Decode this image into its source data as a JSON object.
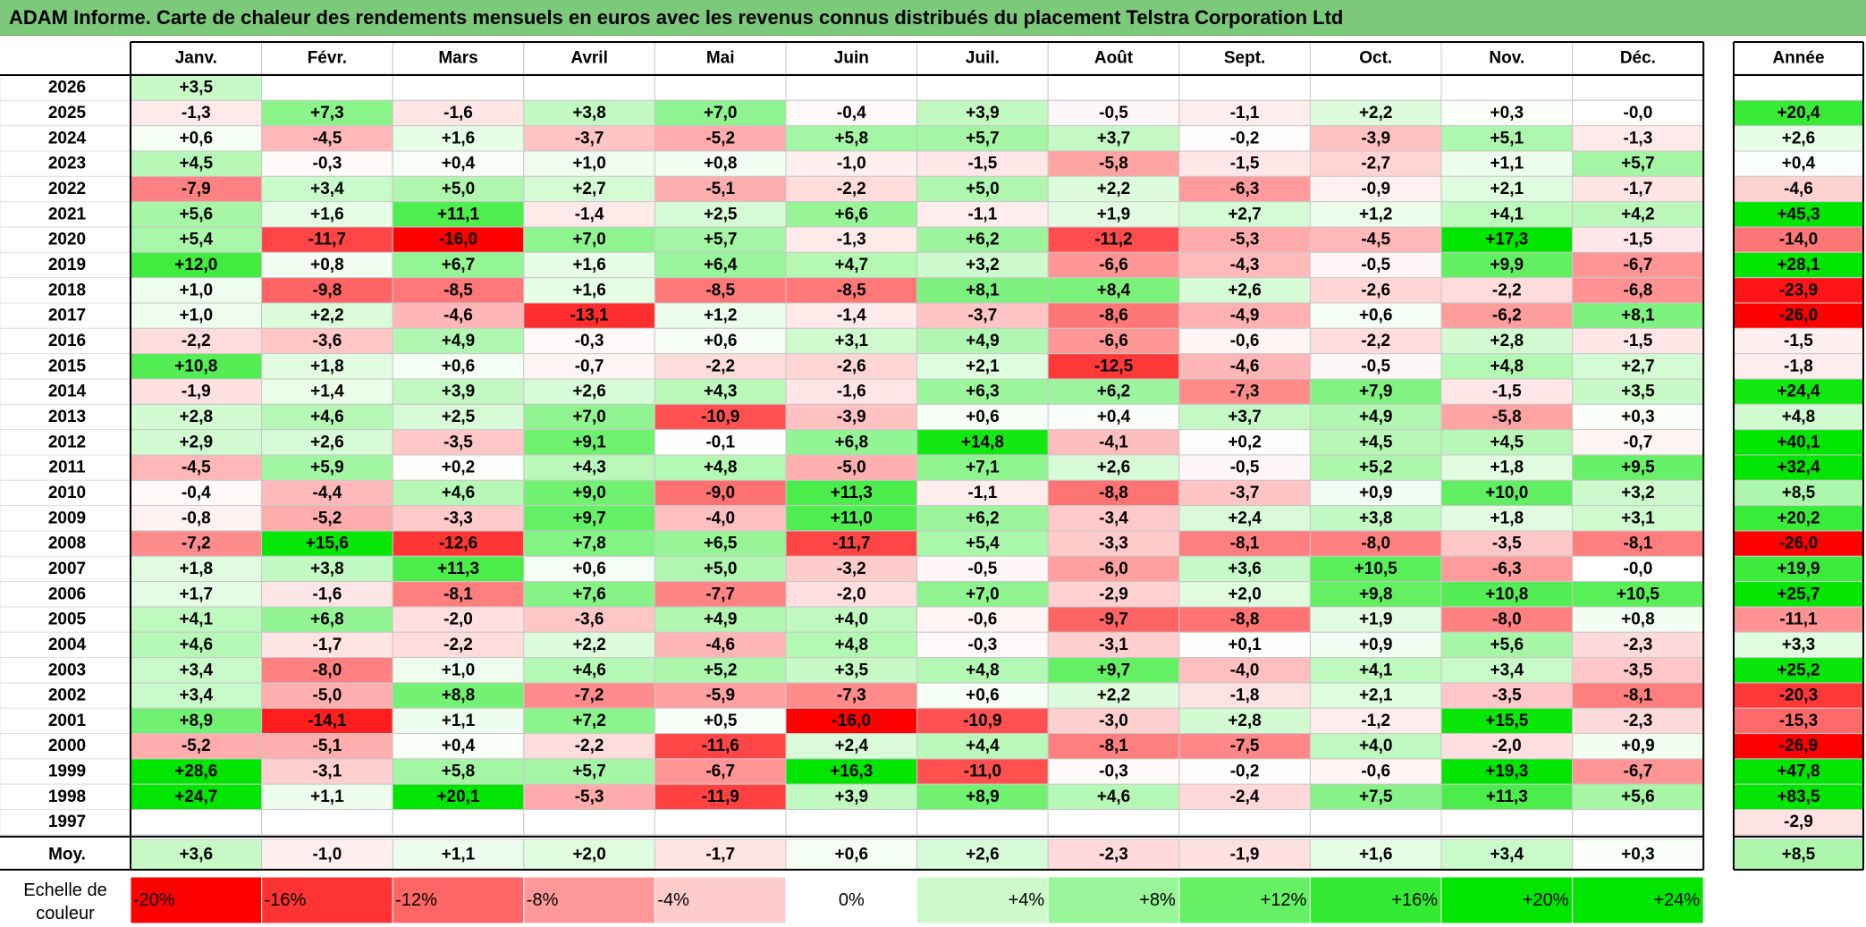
{
  "title": "ADAM Informe. Carte de chaleur des rendements mensuels en euros avec les revenus connus distribués du placement Telstra Corporation Ltd",
  "colors": {
    "title_bg": "#7cc97c",
    "positive": "#00e600",
    "negative": "#ff0000",
    "neutral": "#ffffff"
  },
  "chart_data": {
    "type": "heatmap",
    "months": [
      "Janv.",
      "Févr.",
      "Mars",
      "Avril",
      "Mai",
      "Juin",
      "Juil.",
      "Août",
      "Sept.",
      "Oct.",
      "Nov.",
      "Déc."
    ],
    "year_header": "Année",
    "avg_label": "Moy.",
    "rows": [
      {
        "year": "2026",
        "values": [
          "+3,5",
          "",
          "",
          "",
          "",
          "",
          "",
          "",
          "",
          "",
          "",
          ""
        ],
        "annual": ""
      },
      {
        "year": "2025",
        "values": [
          "-1,3",
          "+7,3",
          "-1,6",
          "+3,8",
          "+7,0",
          "-0,4",
          "+3,9",
          "-0,5",
          "-1,1",
          "+2,2",
          "+0,3",
          "-0,0"
        ],
        "annual": "+20,4"
      },
      {
        "year": "2024",
        "values": [
          "+0,6",
          "-4,5",
          "+1,6",
          "-3,7",
          "-5,2",
          "+5,8",
          "+5,7",
          "+3,7",
          "-0,2",
          "-3,9",
          "+5,1",
          "-1,3"
        ],
        "annual": "+2,6"
      },
      {
        "year": "2023",
        "values": [
          "+4,5",
          "-0,3",
          "+0,4",
          "+1,0",
          "+0,8",
          "-1,0",
          "-1,5",
          "-5,8",
          "-1,5",
          "-2,7",
          "+1,1",
          "+5,7"
        ],
        "annual": "+0,4"
      },
      {
        "year": "2022",
        "values": [
          "-7,9",
          "+3,4",
          "+5,0",
          "+2,7",
          "-5,1",
          "-2,2",
          "+5,0",
          "+2,2",
          "-6,3",
          "-0,9",
          "+2,1",
          "-1,7"
        ],
        "annual": "-4,6"
      },
      {
        "year": "2021",
        "values": [
          "+5,6",
          "+1,6",
          "+11,1",
          "-1,4",
          "+2,5",
          "+6,6",
          "-1,1",
          "+1,9",
          "+2,7",
          "+1,2",
          "+4,1",
          "+4,2"
        ],
        "annual": "+45,3"
      },
      {
        "year": "2020",
        "values": [
          "+5,4",
          "-11,7",
          "-16,0",
          "+7,0",
          "+5,7",
          "-1,3",
          "+6,2",
          "-11,2",
          "-5,3",
          "-4,5",
          "+17,3",
          "-1,5"
        ],
        "annual": "-14,0"
      },
      {
        "year": "2019",
        "values": [
          "+12,0",
          "+0,8",
          "+6,7",
          "+1,6",
          "+6,4",
          "+4,7",
          "+3,2",
          "-6,6",
          "-4,3",
          "-0,5",
          "+9,9",
          "-6,7"
        ],
        "annual": "+28,1"
      },
      {
        "year": "2018",
        "values": [
          "+1,0",
          "-9,8",
          "-8,5",
          "+1,6",
          "-8,5",
          "-8,5",
          "+8,1",
          "+8,4",
          "+2,6",
          "-2,6",
          "-2,2",
          "-6,8"
        ],
        "annual": "-23,9"
      },
      {
        "year": "2017",
        "values": [
          "+1,0",
          "+2,2",
          "-4,6",
          "-13,1",
          "+1,2",
          "-1,4",
          "-3,7",
          "-8,6",
          "-4,9",
          "+0,6",
          "-6,2",
          "+8,1"
        ],
        "annual": "-26,0"
      },
      {
        "year": "2016",
        "values": [
          "-2,2",
          "-3,6",
          "+4,9",
          "-0,3",
          "+0,6",
          "+3,1",
          "+4,9",
          "-6,6",
          "-0,6",
          "-2,2",
          "+2,8",
          "-1,5"
        ],
        "annual": "-1,5"
      },
      {
        "year": "2015",
        "values": [
          "+10,8",
          "+1,8",
          "+0,6",
          "-0,7",
          "-2,2",
          "-2,6",
          "+2,1",
          "-12,5",
          "-4,6",
          "-0,5",
          "+4,8",
          "+2,7"
        ],
        "annual": "-1,8"
      },
      {
        "year": "2014",
        "values": [
          "-1,9",
          "+1,4",
          "+3,9",
          "+2,6",
          "+4,3",
          "-1,6",
          "+6,3",
          "+6,2",
          "-7,3",
          "+7,9",
          "-1,5",
          "+3,5"
        ],
        "annual": "+24,4"
      },
      {
        "year": "2013",
        "values": [
          "+2,8",
          "+4,6",
          "+2,5",
          "+7,0",
          "-10,9",
          "-3,9",
          "+0,6",
          "+0,4",
          "+3,7",
          "+4,9",
          "-5,8",
          "+0,3"
        ],
        "annual": "+4,8"
      },
      {
        "year": "2012",
        "values": [
          "+2,9",
          "+2,6",
          "-3,5",
          "+9,1",
          "-0,1",
          "+6,8",
          "+14,8",
          "-4,1",
          "+0,2",
          "+4,5",
          "+4,5",
          "-0,7"
        ],
        "annual": "+40,1"
      },
      {
        "year": "2011",
        "values": [
          "-4,5",
          "+5,9",
          "+0,2",
          "+4,3",
          "+4,8",
          "-5,0",
          "+7,1",
          "+2,6",
          "-0,5",
          "+5,2",
          "+1,8",
          "+9,5"
        ],
        "annual": "+32,4"
      },
      {
        "year": "2010",
        "values": [
          "-0,4",
          "-4,4",
          "+4,6",
          "+9,0",
          "-9,0",
          "+11,3",
          "-1,1",
          "-8,8",
          "-3,7",
          "+0,9",
          "+10,0",
          "+3,2"
        ],
        "annual": "+8,5"
      },
      {
        "year": "2009",
        "values": [
          "-0,8",
          "-5,2",
          "-3,3",
          "+9,7",
          "-4,0",
          "+11,0",
          "+6,2",
          "-3,4",
          "+2,4",
          "+3,8",
          "+1,8",
          "+3,1"
        ],
        "annual": "+20,2"
      },
      {
        "year": "2008",
        "values": [
          "-7,2",
          "+15,6",
          "-12,6",
          "+7,8",
          "+6,5",
          "-11,7",
          "+5,4",
          "-3,3",
          "-8,1",
          "-8,0",
          "-3,5",
          "-8,1"
        ],
        "annual": "-26,0"
      },
      {
        "year": "2007",
        "values": [
          "+1,8",
          "+3,8",
          "+11,3",
          "+0,6",
          "+5,0",
          "-3,2",
          "-0,5",
          "-6,0",
          "+3,6",
          "+10,5",
          "-6,3",
          "-0,0"
        ],
        "annual": "+19,9"
      },
      {
        "year": "2006",
        "values": [
          "+1,7",
          "-1,6",
          "-8,1",
          "+7,6",
          "-7,7",
          "-2,0",
          "+7,0",
          "-2,9",
          "+2,0",
          "+9,8",
          "+10,8",
          "+10,5"
        ],
        "annual": "+25,7"
      },
      {
        "year": "2005",
        "values": [
          "+4,1",
          "+6,8",
          "-2,0",
          "-3,6",
          "+4,9",
          "+4,0",
          "-0,6",
          "-9,7",
          "-8,8",
          "+1,9",
          "-8,0",
          "+0,8"
        ],
        "annual": "-11,1"
      },
      {
        "year": "2004",
        "values": [
          "+4,6",
          "-1,7",
          "-2,2",
          "+2,2",
          "-4,6",
          "+4,8",
          "-0,3",
          "-3,1",
          "+0,1",
          "+0,9",
          "+5,6",
          "-2,3"
        ],
        "annual": "+3,3"
      },
      {
        "year": "2003",
        "values": [
          "+3,4",
          "-8,0",
          "+1,0",
          "+4,6",
          "+5,2",
          "+3,5",
          "+4,8",
          "+9,7",
          "-4,0",
          "+4,1",
          "+3,4",
          "-3,5"
        ],
        "annual": "+25,2"
      },
      {
        "year": "2002",
        "values": [
          "+3,4",
          "-5,0",
          "+8,8",
          "-7,2",
          "-5,9",
          "-7,3",
          "+0,6",
          "+2,2",
          "-1,8",
          "+2,1",
          "-3,5",
          "-8,1"
        ],
        "annual": "-20,3"
      },
      {
        "year": "2001",
        "values": [
          "+8,9",
          "-14,1",
          "+1,1",
          "+7,2",
          "+0,5",
          "-16,0",
          "-10,9",
          "-3,0",
          "+2,8",
          "-1,2",
          "+15,5",
          "-2,3"
        ],
        "annual": "-15,3"
      },
      {
        "year": "2000",
        "values": [
          "-5,2",
          "-5,1",
          "+0,4",
          "-2,2",
          "-11,6",
          "+2,4",
          "+4,4",
          "-8,1",
          "-7,5",
          "+4,0",
          "-2,0",
          "+0,9"
        ],
        "annual": "-26,9"
      },
      {
        "year": "1999",
        "values": [
          "+28,6",
          "-3,1",
          "+5,8",
          "+5,7",
          "-6,7",
          "+16,3",
          "-11,0",
          "-0,3",
          "-0,2",
          "-0,6",
          "+19,3",
          "-6,7"
        ],
        "annual": "+47,8"
      },
      {
        "year": "1998",
        "values": [
          "+24,7",
          "+1,1",
          "+20,1",
          "-5,3",
          "-11,9",
          "+3,9",
          "+8,9",
          "+4,6",
          "-2,4",
          "+7,5",
          "+11,3",
          "+5,6"
        ],
        "annual": "+83,5"
      },
      {
        "year": "1997",
        "values": [
          "",
          "",
          "",
          "",
          "",
          "",
          "",
          "",
          "",
          "",
          "",
          ""
        ],
        "annual": "-2,9"
      }
    ],
    "averages": [
      "+3,6",
      "-1,0",
      "+1,1",
      "+2,0",
      "-1,7",
      "+0,6",
      "+2,6",
      "-2,3",
      "-1,9",
      "+1,6",
      "+3,4",
      "+0,3"
    ],
    "avg_annual": "+8,5",
    "scale_label": [
      "Echelle de",
      "couleur"
    ],
    "scale": [
      "-20%",
      "-16%",
      "-12%",
      "-8%",
      "-4%",
      "0%",
      "+4%",
      "+8%",
      "+12%",
      "+16%",
      "+20%",
      "+24%"
    ]
  }
}
